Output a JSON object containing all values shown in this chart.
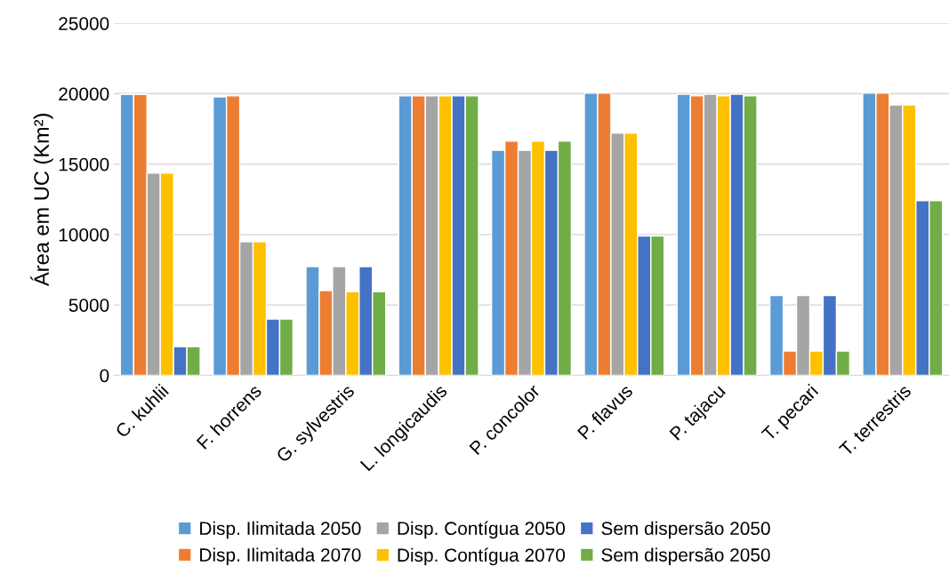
{
  "chart_data": {
    "type": "bar",
    "ylabel": "Área em UC (Km²)",
    "categories": [
      "C. kuhlii",
      "F. horrens",
      "G. sylvestris",
      "L. longicaudis",
      "P. concolor",
      "P. flavus",
      "P. tajacu",
      "T. pecari",
      "T. terrestris"
    ],
    "series": [
      {
        "name": "Disp. Ilimitada 2050",
        "color": "#5b9bd5",
        "values": [
          19950,
          19770,
          7730,
          19850,
          15980,
          20040,
          19960,
          5680,
          20040
        ]
      },
      {
        "name": "Disp. Ilimitada 2070",
        "color": "#ed7d31",
        "values": [
          19950,
          19850,
          6020,
          19850,
          16630,
          20040,
          19850,
          1730,
          20040
        ]
      },
      {
        "name": "Disp. Contígua 2050",
        "color": "#a5a5a5",
        "values": [
          14360,
          9490,
          7730,
          19850,
          15980,
          17200,
          19960,
          5680,
          19200
        ]
      },
      {
        "name": "Disp. Contígua 2070",
        "color": "#ffc000",
        "values": [
          14360,
          9490,
          5940,
          19850,
          16630,
          17200,
          19850,
          1730,
          19200
        ]
      },
      {
        "name": "Sem dispersão 2050",
        "color": "#4472c4",
        "values": [
          2040,
          4000,
          7730,
          19850,
          15980,
          9900,
          19960,
          5680,
          12400
        ]
      },
      {
        "name": "Sem dispersão 2050",
        "color": "#70ad47",
        "values": [
          2040,
          4000,
          5940,
          19850,
          16630,
          9900,
          19850,
          1730,
          12400
        ]
      }
    ],
    "ylim": [
      0,
      25000
    ],
    "yticks": [
      0,
      5000,
      10000,
      15000,
      20000,
      25000
    ],
    "grid": "y",
    "legend": "bottom"
  }
}
